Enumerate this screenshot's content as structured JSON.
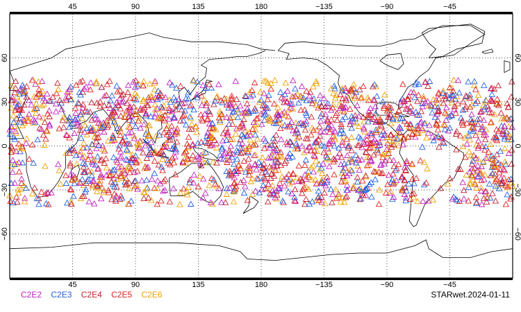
{
  "map": {
    "projection": "equirectangular",
    "central_longitude": 180,
    "lon_range": [
      0,
      360
    ],
    "lat_range": [
      -90,
      90
    ],
    "top_lon_labels": [
      "45",
      "90",
      "135",
      "180",
      "−135",
      "−90",
      "−45"
    ],
    "bottom_lon_labels": [
      "45",
      "90",
      "135",
      "180",
      "−135",
      "−90",
      "−45"
    ],
    "lat_labels": [
      "60",
      "30",
      "0",
      "−30",
      "−60"
    ],
    "grid": "dotted",
    "grid_lon_values": [
      45,
      90,
      135,
      180,
      225,
      270,
      315
    ],
    "grid_lat_values": [
      60,
      30,
      0,
      -30,
      -60
    ],
    "marker": "triangle-outline",
    "observation_band_lat": [
      -40,
      45
    ],
    "observation_count_estimate": 2600
  },
  "legend": {
    "items": [
      {
        "label": "C2E2",
        "color": "#c020c0"
      },
      {
        "label": "C2E3",
        "color": "#2060e0"
      },
      {
        "label": "C2E4",
        "color": "#c02030"
      },
      {
        "label": "C2E5",
        "color": "#e02020"
      },
      {
        "label": "C2E6",
        "color": "#f0a000"
      }
    ]
  },
  "footer": {
    "label": "STARwet.2024-01-11"
  }
}
